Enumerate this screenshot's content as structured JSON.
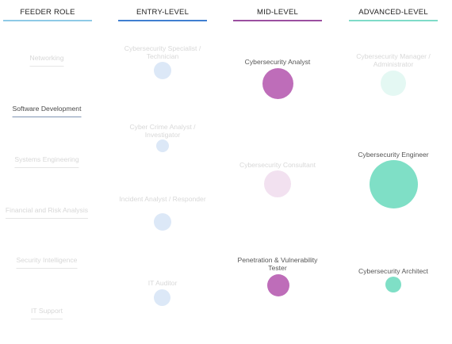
{
  "columns": [
    {
      "key": "feeder",
      "label": "FEEDER ROLE",
      "color": "#8ecae6"
    },
    {
      "key": "entry",
      "label": "ENTRY-LEVEL",
      "color": "#3f7fd0"
    },
    {
      "key": "mid",
      "label": "MID-LEVEL",
      "color": "#9b4fa0"
    },
    {
      "key": "advanced",
      "label": "ADVANCED-LEVEL",
      "color": "#7fdbc8"
    }
  ],
  "feeder_roles": [
    {
      "label": "Networking",
      "active": false
    },
    {
      "label": "Software Development",
      "active": true
    },
    {
      "label": "Systems Engineering",
      "active": false
    },
    {
      "label": "Financial and Risk Analysis",
      "active": false
    },
    {
      "label": "Security Intelligence",
      "active": false
    },
    {
      "label": "IT Support",
      "active": false
    }
  ],
  "entry_roles": [
    {
      "label": "Cybersecurity Specialist / Technician",
      "active": false,
      "color": "#dce8f7"
    },
    {
      "label": "Cyber Crime Analyst / Investigator",
      "active": false,
      "color": "#dce8f7"
    },
    {
      "label": "Incident Analyst / Responder",
      "active": false,
      "color": "#dce8f7"
    },
    {
      "label": "IT Auditor",
      "active": false,
      "color": "#dce8f7"
    }
  ],
  "mid_roles": [
    {
      "label": "Cybersecurity Analyst",
      "active": true,
      "color": "#be6db9"
    },
    {
      "label": "Cybersecurity Consultant",
      "active": false,
      "color": "#f2e1f0"
    },
    {
      "label": "Penetration & Vulnerability Tester",
      "active": true,
      "color": "#be6db9"
    }
  ],
  "advanced_roles": [
    {
      "label": "Cybersecurity Manager / Administrator",
      "active": false,
      "color": "#e4f8f3"
    },
    {
      "label": "Cybersecurity Engineer",
      "active": true,
      "color": "#7fdfc6"
    },
    {
      "label": "Cybersecurity Architect",
      "active": true,
      "color": "#7fdfc6"
    }
  ]
}
